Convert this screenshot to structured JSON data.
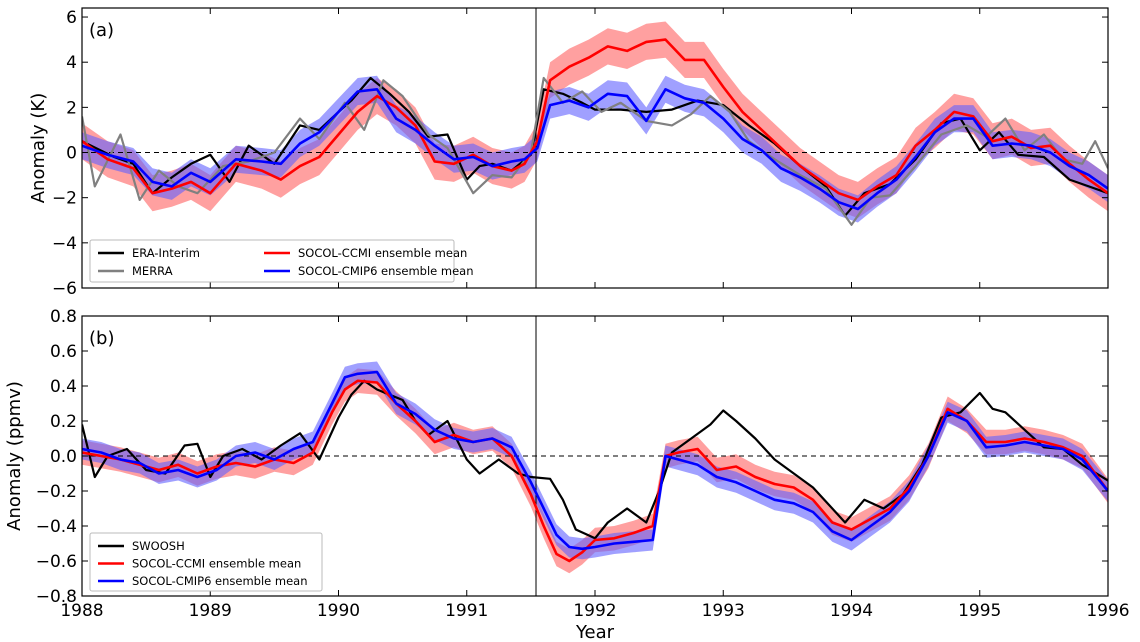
{
  "chart_data": [
    {
      "type": "line",
      "panel_label": "(a)",
      "xlabel": "",
      "ylabel": "Anomaly (K)",
      "xlim": [
        1988,
        1996
      ],
      "ylim": [
        -6,
        6.4
      ],
      "xticks": [
        1988,
        1989,
        1990,
        1991,
        1992,
        1993,
        1994,
        1995,
        1996
      ],
      "yticks": [
        -6,
        -4,
        -2,
        0,
        2,
        4,
        6
      ],
      "ytick_labels": [
        "−6",
        "−4",
        "−2",
        "0",
        "2",
        "4",
        "6"
      ],
      "zero_line": true,
      "event_line_x": 1991.54,
      "legend": {
        "placement": "bottom-left",
        "columns": 2,
        "entries": [
          "ERA-Interim",
          "MERRA",
          "SOCOL-CCMI ensemble mean",
          "SOCOL-CMIP6 ensemble mean"
        ]
      },
      "series": [
        {
          "name": "ERA-Interim",
          "color": "#000000",
          "x": [
            1988.0,
            1988.25,
            1988.4,
            1988.55,
            1988.7,
            1988.85,
            1989.0,
            1989.15,
            1989.3,
            1989.5,
            1989.7,
            1989.85,
            1990.0,
            1990.1,
            1990.25,
            1990.4,
            1990.55,
            1990.7,
            1990.85,
            1991.0,
            1991.1,
            1991.2,
            1991.35,
            1991.5,
            1991.6,
            1991.75,
            1991.9,
            1992.0,
            1992.2,
            1992.4,
            1992.6,
            1992.8,
            1993.0,
            1993.2,
            1993.4,
            1993.6,
            1993.8,
            1993.95,
            1994.1,
            1994.3,
            1994.5,
            1994.7,
            1994.85,
            1995.0,
            1995.15,
            1995.3,
            1995.5,
            1995.7,
            1995.85,
            1996.0
          ],
          "values": [
            0.5,
            -0.2,
            -0.5,
            -1.8,
            -1.1,
            -0.5,
            -0.1,
            -1.3,
            0.3,
            -0.5,
            1.2,
            1.0,
            1.8,
            2.3,
            3.3,
            2.6,
            1.8,
            0.7,
            0.8,
            -1.2,
            -0.6,
            -0.5,
            -0.8,
            -0.1,
            2.8,
            2.6,
            2.2,
            1.9,
            1.9,
            1.8,
            1.9,
            2.3,
            2.1,
            1.2,
            0.4,
            -0.6,
            -1.5,
            -2.8,
            -1.8,
            -1.4,
            -0.3,
            1.3,
            1.5,
            0.1,
            0.9,
            -0.1,
            -0.2,
            -1.2,
            -1.5,
            -1.8
          ]
        },
        {
          "name": "MERRA",
          "color": "#808080",
          "x": [
            1988.0,
            1988.1,
            1988.3,
            1988.45,
            1988.6,
            1988.75,
            1988.9,
            1989.1,
            1989.3,
            1989.5,
            1989.7,
            1989.85,
            1990.05,
            1990.2,
            1990.35,
            1990.5,
            1990.7,
            1990.85,
            1991.05,
            1991.2,
            1991.35,
            1991.5,
            1991.6,
            1991.75,
            1991.9,
            1992.05,
            1992.2,
            1992.4,
            1992.6,
            1992.75,
            1992.9,
            1993.05,
            1993.2,
            1993.4,
            1993.6,
            1993.8,
            1994.0,
            1994.15,
            1994.3,
            1994.5,
            1994.7,
            1994.9,
            1995.05,
            1995.2,
            1995.35,
            1995.5,
            1995.65,
            1995.8,
            1995.9,
            1996.0
          ],
          "values": [
            1.6,
            -1.5,
            0.8,
            -2.1,
            -0.8,
            -1.5,
            -1.8,
            -0.6,
            -0.4,
            0.0,
            1.5,
            0.6,
            2.2,
            1.0,
            3.2,
            2.5,
            0.8,
            0.2,
            -1.8,
            -1.0,
            -1.1,
            0.0,
            3.3,
            2.2,
            2.7,
            1.8,
            2.2,
            1.4,
            1.2,
            1.7,
            2.5,
            1.8,
            0.5,
            -0.3,
            -1.0,
            -1.6,
            -3.2,
            -2.0,
            -1.9,
            -0.6,
            0.8,
            1.2,
            0.7,
            1.5,
            0.1,
            0.8,
            -0.3,
            -0.5,
            0.5,
            -0.7
          ]
        },
        {
          "name": "SOCOL-CCMI ensemble mean",
          "color": "#ff0000",
          "x": [
            1988.0,
            1988.2,
            1988.4,
            1988.55,
            1988.7,
            1988.85,
            1989.0,
            1989.2,
            1989.4,
            1989.55,
            1989.7,
            1989.85,
            1990.0,
            1990.15,
            1990.3,
            1990.45,
            1990.6,
            1990.75,
            1990.9,
            1991.05,
            1991.2,
            1991.35,
            1991.45,
            1991.55,
            1991.65,
            1991.8,
            1991.95,
            1992.1,
            1992.25,
            1992.4,
            1992.55,
            1992.7,
            1992.85,
            1993.0,
            1993.15,
            1993.3,
            1993.45,
            1993.6,
            1993.75,
            1993.9,
            1994.05,
            1994.2,
            1994.35,
            1994.5,
            1994.65,
            1994.8,
            1994.95,
            1995.1,
            1995.25,
            1995.4,
            1995.55,
            1995.7,
            1995.85,
            1996.0
          ],
          "values": [
            0.5,
            -0.3,
            -0.7,
            -1.8,
            -1.6,
            -1.3,
            -1.8,
            -0.5,
            -0.8,
            -1.2,
            -0.6,
            -0.2,
            0.8,
            1.8,
            2.5,
            2.0,
            1.2,
            -0.4,
            -0.5,
            -0.1,
            -0.6,
            -0.8,
            -0.5,
            0.5,
            3.2,
            3.8,
            4.2,
            4.7,
            4.5,
            4.9,
            5.0,
            4.1,
            4.1,
            2.9,
            1.8,
            1.0,
            0.2,
            -0.6,
            -1.2,
            -1.8,
            -2.1,
            -1.5,
            -1.0,
            0.3,
            1.0,
            1.8,
            1.6,
            0.5,
            0.7,
            0.2,
            0.3,
            -0.5,
            -1.2,
            -1.8
          ]
        },
        {
          "name": "SOCOL-CMIP6 ensemble mean",
          "color": "#0000ff",
          "x": [
            1988.0,
            1988.2,
            1988.4,
            1988.55,
            1988.7,
            1988.85,
            1989.0,
            1989.2,
            1989.4,
            1989.55,
            1989.7,
            1989.85,
            1990.0,
            1990.15,
            1990.3,
            1990.45,
            1990.6,
            1990.75,
            1990.9,
            1991.05,
            1991.2,
            1991.35,
            1991.45,
            1991.55,
            1991.65,
            1991.8,
            1991.95,
            1992.1,
            1992.25,
            1992.4,
            1992.55,
            1992.7,
            1992.85,
            1993.0,
            1993.15,
            1993.3,
            1993.45,
            1993.6,
            1993.75,
            1993.9,
            1994.05,
            1994.2,
            1994.35,
            1994.5,
            1994.65,
            1994.8,
            1994.95,
            1995.1,
            1995.25,
            1995.4,
            1995.55,
            1995.7,
            1995.85,
            1996.0
          ],
          "values": [
            0.3,
            -0.1,
            -0.4,
            -1.3,
            -1.5,
            -0.9,
            -1.3,
            -0.3,
            -0.4,
            -0.5,
            0.4,
            0.9,
            1.8,
            2.7,
            2.8,
            1.5,
            1.0,
            0.3,
            -0.3,
            -0.2,
            -0.6,
            -0.4,
            -0.3,
            0.2,
            2.1,
            2.3,
            2.0,
            2.6,
            2.5,
            1.4,
            2.8,
            2.4,
            2.2,
            1.5,
            0.6,
            0.1,
            -0.7,
            -1.1,
            -1.6,
            -2.2,
            -2.5,
            -1.8,
            -1.2,
            -0.2,
            0.9,
            1.5,
            1.5,
            0.3,
            0.4,
            0.3,
            0.0,
            -0.6,
            -1.0,
            -1.6
          ]
        }
      ],
      "bands": [
        {
          "series": "SOCOL-CCMI ensemble mean",
          "color": "#ff6060",
          "spread": 0.8
        },
        {
          "series": "SOCOL-CMIP6 ensemble mean",
          "color": "#6060ff",
          "spread": 0.6
        }
      ]
    },
    {
      "type": "line",
      "panel_label": "(b)",
      "xlabel": "Year",
      "ylabel": "Anomaly (ppmv)",
      "xlim": [
        1988,
        1996
      ],
      "ylim": [
        -0.8,
        0.8
      ],
      "xticks": [
        1988,
        1989,
        1990,
        1991,
        1992,
        1993,
        1994,
        1995,
        1996
      ],
      "yticks": [
        -0.8,
        -0.6,
        -0.4,
        -0.2,
        0.0,
        0.2,
        0.4,
        0.6,
        0.8
      ],
      "ytick_labels": [
        "−0.8",
        "−0.6",
        "−0.4",
        "−0.2",
        "0.0",
        "0.2",
        "0.4",
        "0.6",
        "0.8"
      ],
      "zero_line": true,
      "event_line_x": 1991.54,
      "legend": {
        "placement": "bottom-left",
        "columns": 1,
        "entries": [
          "SWOOSH",
          "SOCOL-CCMI ensemble mean",
          "SOCOL-CMIP6 ensemble mean"
        ]
      },
      "series": [
        {
          "name": "SWOOSH",
          "color": "#000000",
          "x": [
            1988.0,
            1988.1,
            1988.2,
            1988.35,
            1988.5,
            1988.65,
            1988.8,
            1988.9,
            1989.0,
            1989.1,
            1989.25,
            1989.4,
            1989.55,
            1989.7,
            1989.85,
            1990.0,
            1990.1,
            1990.2,
            1990.3,
            1990.4,
            1990.5,
            1990.6,
            1990.7,
            1990.85,
            1991.0,
            1991.1,
            1991.25,
            1991.4,
            1991.5,
            1991.65,
            1991.75,
            1991.85,
            1992.0,
            1992.1,
            1992.25,
            1992.4,
            1992.5,
            1992.6,
            1992.75,
            1992.9,
            1993.0,
            1993.1,
            1993.25,
            1993.4,
            1993.55,
            1993.7,
            1993.85,
            1993.95,
            1994.1,
            1994.25,
            1994.4,
            1994.55,
            1994.7,
            1994.85,
            1995.0,
            1995.1,
            1995.2,
            1995.35,
            1995.5,
            1995.65,
            1995.8,
            1996.0
          ],
          "values": [
            0.18,
            -0.12,
            0.0,
            0.04,
            -0.08,
            -0.1,
            0.06,
            0.07,
            -0.12,
            0.0,
            0.04,
            -0.02,
            0.06,
            0.13,
            -0.02,
            0.22,
            0.35,
            0.43,
            0.38,
            0.35,
            0.32,
            0.2,
            0.12,
            0.2,
            -0.02,
            -0.1,
            -0.02,
            -0.1,
            -0.12,
            -0.13,
            -0.25,
            -0.42,
            -0.47,
            -0.38,
            -0.3,
            -0.38,
            -0.2,
            0.02,
            0.1,
            0.18,
            0.26,
            0.2,
            0.1,
            -0.02,
            -0.1,
            -0.18,
            -0.3,
            -0.38,
            -0.25,
            -0.3,
            -0.22,
            -0.05,
            0.22,
            0.25,
            0.36,
            0.27,
            0.25,
            0.15,
            0.05,
            0.04,
            -0.05,
            -0.14
          ]
        },
        {
          "name": "SOCOL-CCMI ensemble mean",
          "color": "#ff0000",
          "x": [
            1988.0,
            1988.15,
            1988.3,
            1988.45,
            1988.6,
            1988.75,
            1988.9,
            1989.05,
            1989.2,
            1989.35,
            1989.5,
            1989.65,
            1989.8,
            1989.95,
            1990.05,
            1990.15,
            1990.3,
            1990.45,
            1990.6,
            1990.75,
            1990.9,
            1991.05,
            1991.2,
            1991.35,
            1991.5,
            1991.6,
            1991.7,
            1991.8,
            1991.9,
            1992.0,
            1992.15,
            1992.3,
            1992.45,
            1992.55,
            1992.65,
            1992.8,
            1992.95,
            1993.1,
            1993.25,
            1993.4,
            1993.55,
            1993.7,
            1993.85,
            1994.0,
            1994.15,
            1994.3,
            1994.45,
            1994.6,
            1994.75,
            1994.9,
            1995.05,
            1995.2,
            1995.35,
            1995.5,
            1995.65,
            1995.8,
            1996.0
          ],
          "values": [
            0.02,
            0.0,
            -0.02,
            -0.05,
            -0.08,
            -0.05,
            -0.1,
            -0.06,
            -0.04,
            -0.06,
            -0.02,
            -0.04,
            0.02,
            0.25,
            0.38,
            0.43,
            0.42,
            0.3,
            0.2,
            0.08,
            0.12,
            0.08,
            0.1,
            0.0,
            -0.22,
            -0.4,
            -0.56,
            -0.6,
            -0.55,
            -0.48,
            -0.47,
            -0.44,
            -0.4,
            0.0,
            0.02,
            0.04,
            -0.08,
            -0.06,
            -0.12,
            -0.16,
            -0.18,
            -0.25,
            -0.38,
            -0.42,
            -0.36,
            -0.3,
            -0.18,
            0.0,
            0.27,
            0.2,
            0.08,
            0.08,
            0.1,
            0.08,
            0.05,
            0.0,
            -0.2
          ]
        },
        {
          "name": "SOCOL-CMIP6 ensemble mean",
          "color": "#0000ff",
          "x": [
            1988.0,
            1988.15,
            1988.3,
            1988.45,
            1988.6,
            1988.75,
            1988.9,
            1989.05,
            1989.2,
            1989.35,
            1989.5,
            1989.65,
            1989.8,
            1989.95,
            1990.05,
            1990.15,
            1990.3,
            1990.45,
            1990.6,
            1990.75,
            1990.9,
            1991.05,
            1991.2,
            1991.35,
            1991.5,
            1991.6,
            1991.7,
            1991.8,
            1991.9,
            1992.0,
            1992.15,
            1992.3,
            1992.45,
            1992.55,
            1992.65,
            1992.8,
            1992.95,
            1993.1,
            1993.25,
            1993.4,
            1993.55,
            1993.7,
            1993.85,
            1994.0,
            1994.15,
            1994.3,
            1994.45,
            1994.6,
            1994.75,
            1994.9,
            1995.05,
            1995.2,
            1995.35,
            1995.5,
            1995.65,
            1995.8,
            1996.0
          ],
          "values": [
            0.04,
            0.02,
            -0.02,
            -0.04,
            -0.1,
            -0.08,
            -0.12,
            -0.08,
            0.0,
            0.02,
            -0.02,
            0.04,
            0.08,
            0.3,
            0.45,
            0.47,
            0.48,
            0.3,
            0.24,
            0.15,
            0.1,
            0.08,
            0.1,
            0.05,
            -0.15,
            -0.3,
            -0.45,
            -0.52,
            -0.53,
            -0.52,
            -0.5,
            -0.49,
            -0.48,
            0.0,
            -0.02,
            -0.05,
            -0.12,
            -0.15,
            -0.2,
            -0.25,
            -0.27,
            -0.32,
            -0.43,
            -0.48,
            -0.4,
            -0.32,
            -0.2,
            0.0,
            0.25,
            0.2,
            0.05,
            0.06,
            0.08,
            0.06,
            0.04,
            -0.02,
            -0.2
          ]
        }
      ],
      "bands": [
        {
          "series": "SOCOL-CCMI ensemble mean",
          "color": "#ff6060",
          "spread": 0.07
        },
        {
          "series": "SOCOL-CMIP6 ensemble mean",
          "color": "#6060ff",
          "spread": 0.06
        }
      ]
    }
  ]
}
